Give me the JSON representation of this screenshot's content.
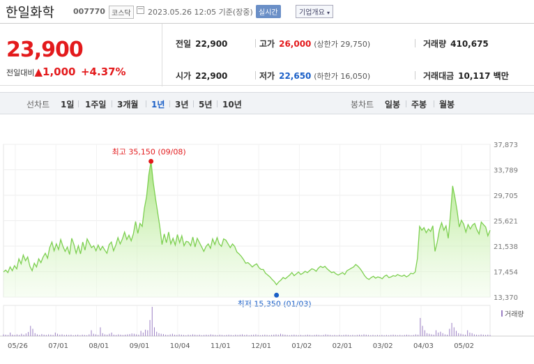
{
  "header": {
    "name": "한일화학",
    "code": "007770",
    "market": "코스닥",
    "time": "2023.05.26 12:05 기준(장중)",
    "realtime": "실시간",
    "overview": "기업개요"
  },
  "summary": {
    "price": "23,900",
    "change_label": "전일대비",
    "change_value": "1,000",
    "change_pct": "+4.37%",
    "prev_label": "전일",
    "prev": "22,900",
    "high_label": "고가",
    "high": "26,000",
    "upper_limit": "(상한가 29,750)",
    "volume_label": "거래량",
    "volume": "410,675",
    "open_label": "시가",
    "open": "22,900",
    "low_label": "저가",
    "low": "22,650",
    "lower_limit": "(하한가 16,050)",
    "amount_label": "거래대금",
    "amount": "10,117 백만"
  },
  "tabs": {
    "line_label": "선차트",
    "periods": [
      "1일",
      "1주일",
      "3개월",
      "1년",
      "3년",
      "5년",
      "10년"
    ],
    "active": "1년",
    "candle_label": "봉차트",
    "candles": [
      "일봉",
      "주봉",
      "월봉"
    ]
  },
  "chart_data": {
    "type": "area",
    "x_ticks": [
      "05/26",
      "07/01",
      "08/01",
      "09/01",
      "10/04",
      "11/01",
      "12/01",
      "01/02",
      "02/01",
      "03/02",
      "04/03",
      "05/02"
    ],
    "y_ticks": [
      37873,
      33789,
      29705,
      25621,
      21538,
      17454,
      13370
    ],
    "ylim": [
      13370,
      37873
    ],
    "y_tick_labels": [
      "37,873",
      "33,789",
      "29,705",
      "25,621",
      "21,538",
      "17,454",
      "13,370"
    ],
    "values": [
      17400,
      17700,
      17300,
      18200,
      17600,
      18400,
      17900,
      19500,
      18700,
      20100,
      19200,
      19800,
      18300,
      17600,
      18800,
      18200,
      19500,
      18900,
      19800,
      20400,
      19600,
      21300,
      22200,
      20800,
      21900,
      21000,
      22600,
      21500,
      20700,
      21400,
      20200,
      22800,
      21800,
      20400,
      21600,
      20300,
      22200,
      20900,
      22700,
      22000,
      21300,
      21600,
      20800,
      21700,
      20900,
      21500,
      20900,
      20400,
      21800,
      22200,
      20800,
      21700,
      22900,
      21900,
      22700,
      23800,
      22600,
      23300,
      22400,
      23500,
      25500,
      23600,
      25200,
      24700,
      27600,
      29500,
      33000,
      35150,
      31800,
      29300,
      27000,
      24700,
      21800,
      23500,
      22100,
      23800,
      21900,
      22800,
      21700,
      23400,
      22100,
      23200,
      21600,
      22300,
      22200,
      21600,
      23000,
      21400,
      22800,
      22100,
      21400,
      20700,
      21500,
      21900,
      21200,
      22700,
      21800,
      22900,
      21900,
      21500,
      22700,
      22500,
      21900,
      21300,
      21900,
      21500,
      20600,
      20300,
      19900,
      19400,
      18800,
      18900,
      18600,
      18200,
      18500,
      18700,
      18100,
      17800,
      17800,
      17200,
      16900,
      16600,
      16200,
      15850,
      15350,
      15800,
      16100,
      16500,
      16300,
      16600,
      16900,
      17300,
      16800,
      17100,
      17400,
      17000,
      17200,
      17500,
      17300,
      17600,
      17900,
      17800,
      17500,
      18000,
      18300,
      18100,
      18300,
      17900,
      17600,
      17300,
      17400,
      17100,
      16900,
      17100,
      17300,
      17000,
      17600,
      17800,
      18000,
      18200,
      18600,
      18300,
      17900,
      17400,
      16800,
      16400,
      16200,
      16500,
      16700,
      16400,
      16600,
      16500,
      16300,
      16700,
      16900,
      16500,
      16600,
      16800,
      16700,
      17000,
      16800,
      16700,
      16900,
      16600,
      16800,
      17200,
      17100,
      17400,
      19600,
      24700,
      24100,
      24500,
      23700,
      24300,
      23900,
      24800,
      20700,
      22200,
      24200,
      25300,
      24100,
      24800,
      22800,
      26500,
      31200,
      29400,
      27300,
      24600,
      25700,
      25100,
      23800,
      25000,
      24300,
      24900,
      25200,
      24200,
      23500,
      25400,
      25000,
      24600,
      23200,
      24100
    ],
    "volume_heights": [
      0.06,
      0.05,
      0.04,
      0.12,
      0.05,
      0.04,
      0.06,
      0.04,
      0.08,
      0.05,
      0.09,
      0.14,
      0.35,
      0.25,
      0.1,
      0.06,
      0.04,
      0.07,
      0.05,
      0.04,
      0.06,
      0.05,
      0.04,
      0.12,
      0.08,
      0.05,
      0.06,
      0.04,
      0.05,
      0.04,
      0.05,
      0.03,
      0.04,
      0.05,
      0.03,
      0.05,
      0.04,
      0.03,
      0.06,
      0.2,
      0.08,
      0.06,
      0.04,
      0.3,
      0.1,
      0.06,
      0.05,
      0.08,
      0.12,
      0.05,
      0.04,
      0.06,
      0.05,
      0.04,
      0.05,
      0.06,
      0.07,
      0.09,
      0.08,
      0.06,
      0.05,
      0.18,
      0.12,
      0.22,
      0.2,
      0.55,
      1.0,
      0.3,
      0.15,
      0.1,
      0.08,
      0.07,
      0.05,
      0.04,
      0.06,
      0.08,
      0.05,
      0.04,
      0.06,
      0.05,
      0.04,
      0.03,
      0.05,
      0.04,
      0.06,
      0.05,
      0.04,
      0.05,
      0.03,
      0.04,
      0.05,
      0.04,
      0.06,
      0.05,
      0.04,
      0.03,
      0.05,
      0.04,
      0.03,
      0.04,
      0.05,
      0.04,
      0.03,
      0.05,
      0.04,
      0.05,
      0.06,
      0.04,
      0.05,
      0.03,
      0.04,
      0.05,
      0.06,
      0.04,
      0.03,
      0.04,
      0.05,
      0.04,
      0.03,
      0.04,
      0.05,
      0.06,
      0.05,
      0.08,
      0.06,
      0.05,
      0.04,
      0.03,
      0.04,
      0.05,
      0.04,
      0.03,
      0.04,
      0.03,
      0.04,
      0.05,
      0.04,
      0.03,
      0.04,
      0.05,
      0.04,
      0.03,
      0.04,
      0.06,
      0.05,
      0.04,
      0.03,
      0.04,
      0.03,
      0.04,
      0.03,
      0.04,
      0.05,
      0.04,
      0.03,
      0.04,
      0.03,
      0.04,
      0.05,
      0.04,
      0.06,
      0.05,
      0.04,
      0.03,
      0.04,
      0.03,
      0.04,
      0.03,
      0.04,
      0.03,
      0.04,
      0.03,
      0.04,
      0.05,
      0.04,
      0.03,
      0.04,
      0.03,
      0.04,
      0.05,
      0.04,
      0.03,
      0.04,
      0.06,
      0.05,
      0.62,
      0.35,
      0.2,
      0.1,
      0.08,
      0.06,
      0.05,
      0.2,
      0.12,
      0.15,
      0.1,
      0.06,
      0.05,
      0.25,
      0.45,
      0.3,
      0.18,
      0.1,
      0.08,
      0.06,
      0.05,
      0.2,
      0.12,
      0.1,
      0.06,
      0.05,
      0.04,
      0.06,
      0.05,
      0.04,
      0.05,
      0.04
    ],
    "high_note": "최고 35,150 (09/08)",
    "low_note": "최저 15,350 (01/03)",
    "volume_legend": "거래량"
  },
  "colors": {
    "up": "#e31a1c",
    "down": "#1a5fc7",
    "line": "#7ccf4f",
    "volume": "#9b7fc4"
  }
}
